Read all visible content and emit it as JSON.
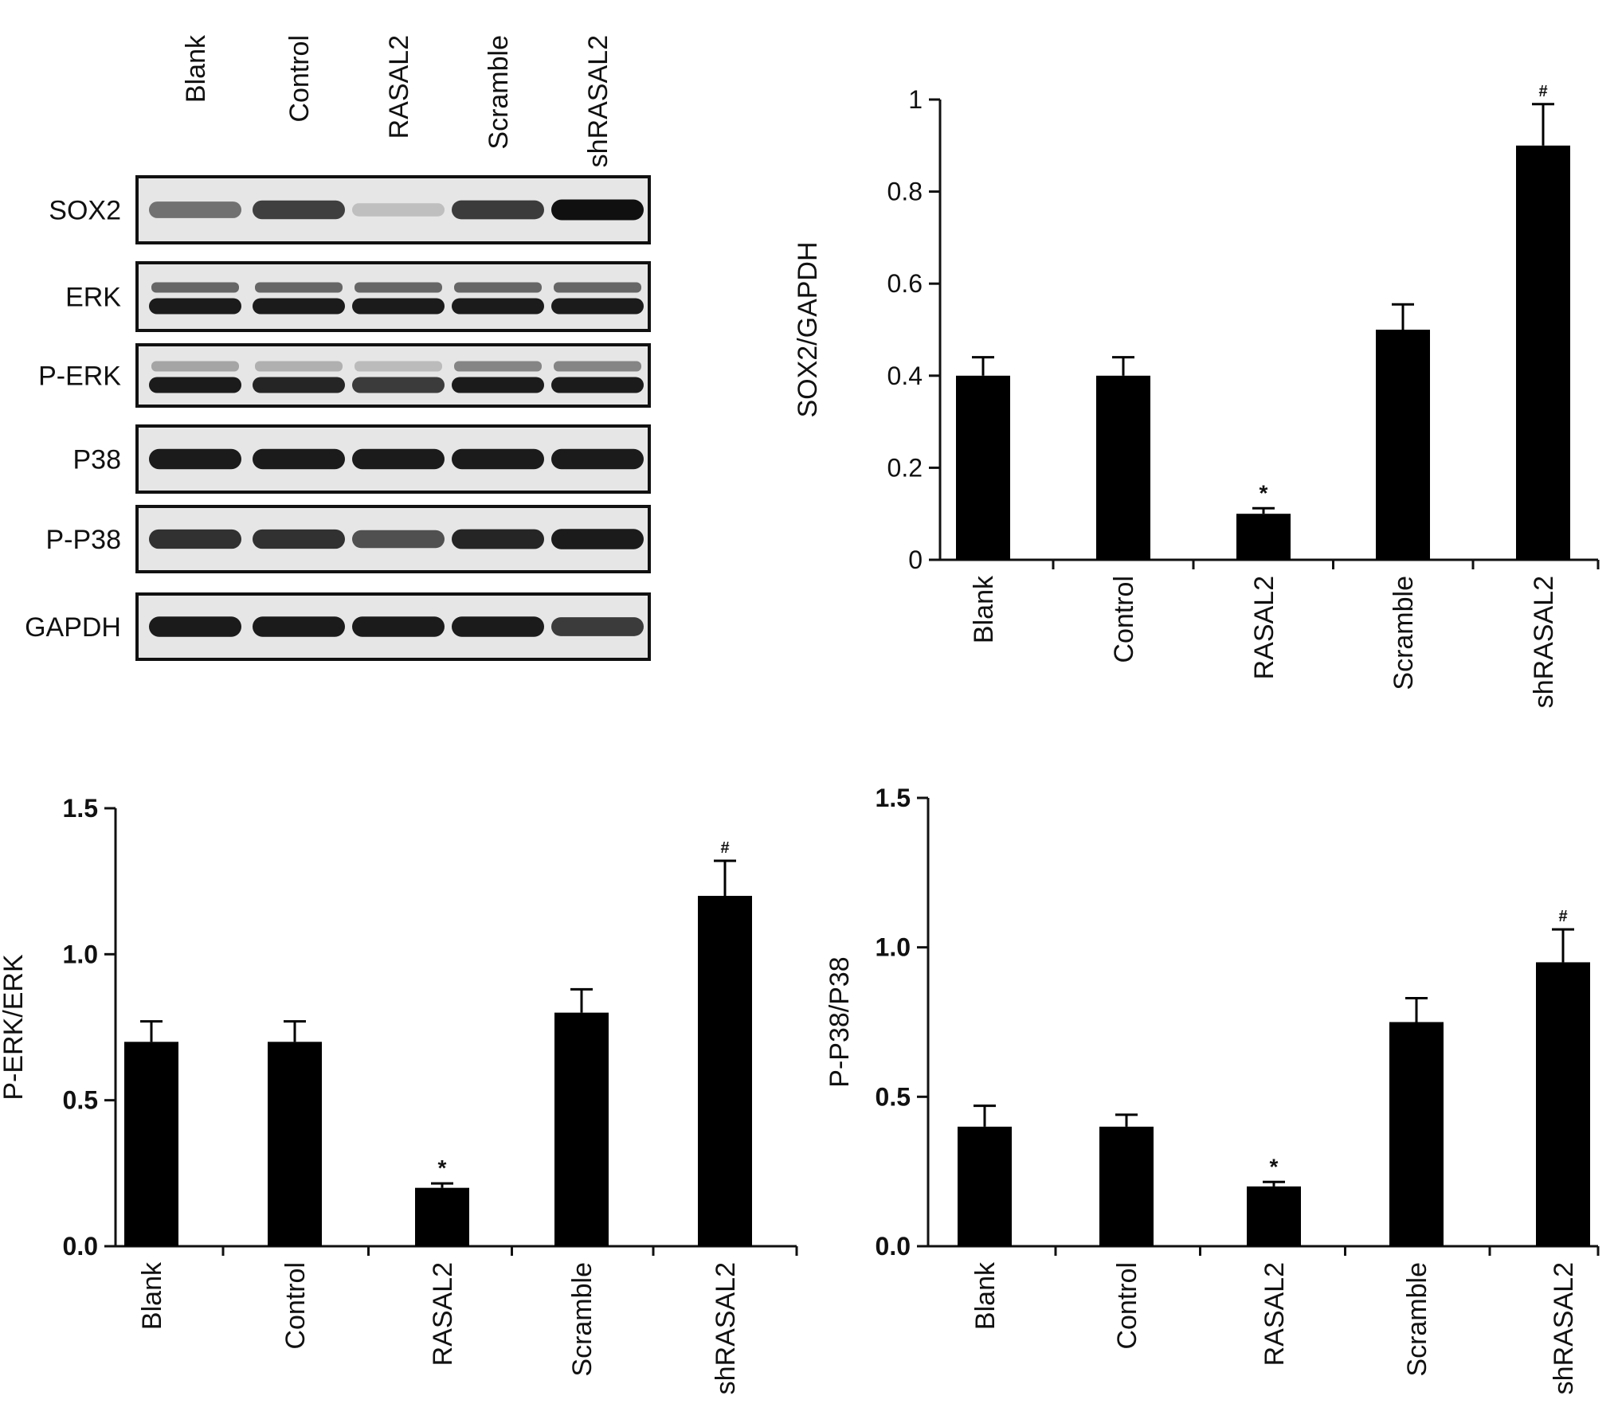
{
  "western_blot": {
    "lanes": [
      "Blank",
      "Control",
      "RASAL2",
      "Scramble",
      "shRASAL2"
    ],
    "rows": [
      {
        "label": "SOX2",
        "bands": [
          [
            0.55,
            0.0
          ],
          [
            0.78,
            0.0
          ],
          [
            0.18,
            0.0
          ],
          [
            0.8,
            0.0
          ],
          [
            1.0,
            0.0
          ]
        ],
        "double": false
      },
      {
        "label": "ERK",
        "bands": [
          [
            0.95,
            0.6
          ],
          [
            0.95,
            0.6
          ],
          [
            0.95,
            0.6
          ],
          [
            0.95,
            0.6
          ],
          [
            0.95,
            0.6
          ]
        ],
        "double": true
      },
      {
        "label": "P-ERK",
        "bands": [
          [
            0.95,
            0.3
          ],
          [
            0.9,
            0.25
          ],
          [
            0.8,
            0.2
          ],
          [
            0.95,
            0.45
          ],
          [
            0.95,
            0.45
          ]
        ],
        "double": true
      },
      {
        "label": "P38",
        "bands": [
          [
            0.95,
            0.0
          ],
          [
            0.95,
            0.0
          ],
          [
            0.95,
            0.0
          ],
          [
            0.95,
            0.0
          ],
          [
            0.95,
            0.0
          ]
        ],
        "double": false
      },
      {
        "label": "P-P38",
        "bands": [
          [
            0.85,
            0.0
          ],
          [
            0.85,
            0.0
          ],
          [
            0.7,
            0.0
          ],
          [
            0.9,
            0.0
          ],
          [
            0.95,
            0.0
          ]
        ],
        "double": false
      },
      {
        "label": "GAPDH",
        "bands": [
          [
            0.95,
            0.0
          ],
          [
            0.95,
            0.0
          ],
          [
            0.95,
            0.0
          ],
          [
            0.95,
            0.0
          ],
          [
            0.8,
            0.0
          ]
        ],
        "double": false
      }
    ]
  },
  "chart_data": [
    {
      "type": "bar",
      "categories": [
        "Blank",
        "Control",
        "RASAL2",
        "Scramble",
        "shRASAL2"
      ],
      "values": [
        0.4,
        0.4,
        0.1,
        0.5,
        0.9
      ],
      "errors": [
        0.04,
        0.04,
        0.012,
        0.055,
        0.09
      ],
      "annotations": [
        "",
        "",
        "*",
        "",
        "#"
      ],
      "ylabel": "SOX2/GAPDH",
      "ylim": [
        0,
        1
      ],
      "yticks": [
        "0",
        "0.2",
        "0.4",
        "0.6",
        "0.8",
        "1"
      ],
      "bold_ticks": false
    },
    {
      "type": "bar",
      "categories": [
        "Blank",
        "Control",
        "RASAL2",
        "Scramble",
        "shRASAL2"
      ],
      "values": [
        0.7,
        0.7,
        0.2,
        0.8,
        1.2
      ],
      "errors": [
        0.07,
        0.07,
        0.015,
        0.08,
        0.12
      ],
      "annotations": [
        "",
        "",
        "*",
        "",
        "#"
      ],
      "ylabel": "P-ERK/ERK",
      "ylim": [
        0,
        1.5
      ],
      "yticks": [
        "0.0",
        "0.5",
        "1.0",
        "1.5"
      ],
      "bold_ticks": true
    },
    {
      "type": "bar",
      "categories": [
        "Blank",
        "Control",
        "RASAL2",
        "Scramble",
        "shRASAL2"
      ],
      "values": [
        0.4,
        0.4,
        0.2,
        0.75,
        0.95
      ],
      "errors": [
        0.07,
        0.04,
        0.015,
        0.08,
        0.11
      ],
      "annotations": [
        "",
        "",
        "*",
        "",
        "#"
      ],
      "ylabel": "P-P38/P38",
      "ylim": [
        0,
        1.5
      ],
      "yticks": [
        "0.0",
        "0.5",
        "1.0",
        "1.5"
      ],
      "bold_ticks": true
    }
  ]
}
